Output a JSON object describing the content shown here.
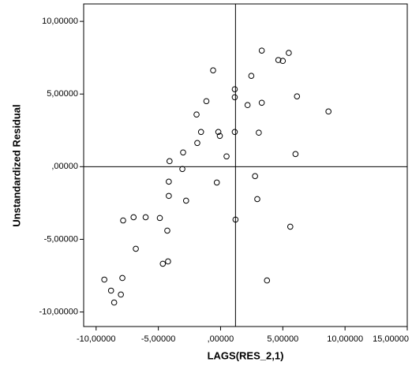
{
  "chart_data": {
    "type": "scatter",
    "x_label": "LAGS(RES_2,1)",
    "y_label": "Unstandardized Residual",
    "x": [
      3.31,
      5.48,
      4.64,
      5.0,
      -0.6,
      2.47,
      1.14,
      1.14,
      6.14,
      -1.14,
      3.31,
      2.17,
      8.67,
      -1.93,
      -0.18,
      -1.57,
      -0.06,
      1.14,
      3.07,
      -1.87,
      -3.01,
      6.02,
      0.48,
      -4.1,
      -3.07,
      2.77,
      -4.16,
      -0.3,
      -4.16,
      -2.77,
      2.95,
      -6.99,
      -6.02,
      -4.88,
      -7.83,
      1.2,
      5.6,
      -4.28,
      -6.81,
      -4.22,
      -4.64,
      -9.34,
      -7.89,
      3.73,
      -8.8,
      -8.01,
      -8.55
    ],
    "values": [
      7.99,
      7.83,
      7.34,
      7.28,
      6.63,
      6.25,
      5.33,
      4.78,
      4.84,
      4.51,
      4.4,
      4.24,
      3.8,
      3.59,
      2.39,
      2.39,
      2.12,
      2.39,
      2.34,
      1.63,
      0.98,
      0.87,
      0.71,
      0.38,
      -0.16,
      -0.65,
      -1.03,
      -1.09,
      -2.01,
      -2.34,
      -2.23,
      -3.48,
      -3.48,
      -3.53,
      -3.7,
      -3.64,
      -4.13,
      -4.4,
      -5.65,
      -6.52,
      -6.68,
      -7.77,
      -7.66,
      -7.83,
      -8.53,
      -8.8,
      -9.35
    ],
    "xlim": [
      -11,
      15
    ],
    "ylim": [
      -11,
      11.2
    ],
    "xticks": [
      {
        "value": -10,
        "label": "-10,00000"
      },
      {
        "value": -5,
        "label": "-5,00000"
      },
      {
        "value": 0,
        "label": ",00000"
      },
      {
        "value": 5,
        "label": "5,00000"
      },
      {
        "value": 10,
        "label": "10,00000"
      },
      {
        "value": 15,
        "label": "15,00000"
      }
    ],
    "yticks": [
      {
        "value": 10,
        "label": "10,00000"
      },
      {
        "value": 5,
        "label": "5,00000"
      },
      {
        "value": 0,
        "label": ",00000"
      },
      {
        "value": -5,
        "label": "-5,00000"
      },
      {
        "value": -10,
        "label": "-10,00000"
      }
    ],
    "reference_lines": {
      "x": 1.2,
      "y": 0
    },
    "color": "#000000"
  }
}
